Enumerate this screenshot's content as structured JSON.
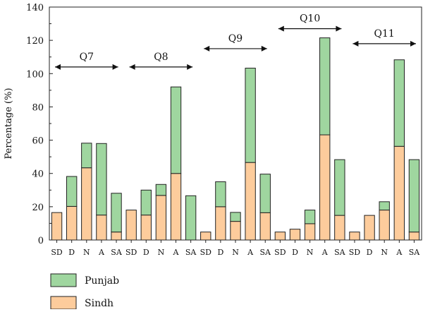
{
  "chart_data": {
    "type": "bar",
    "stacked": true,
    "ylabel": "Percentage (%)",
    "ylim": [
      0,
      140
    ],
    "yticks": [
      0,
      20,
      40,
      60,
      80,
      100,
      120,
      140
    ],
    "grid": false,
    "legend_position": "bottom-left",
    "groups": [
      "Q7",
      "Q8",
      "Q9",
      "Q10",
      "Q11"
    ],
    "categories": [
      "SD",
      "D",
      "N",
      "A",
      "SA",
      "SD",
      "D",
      "N",
      "A",
      "SA",
      "SD",
      "D",
      "N",
      "A",
      "SA",
      "SD",
      "D",
      "N",
      "A",
      "SA",
      "SD",
      "D",
      "N",
      "A",
      "SA"
    ],
    "series": [
      {
        "name": "Sindh",
        "color": "#fdcc9c",
        "values": [
          16.5,
          20.2,
          43.4,
          15.0,
          4.8,
          18.0,
          15.0,
          26.8,
          40.0,
          0.0,
          4.8,
          20.0,
          11.2,
          46.6,
          16.4,
          4.8,
          6.5,
          9.8,
          63.2,
          14.8,
          4.8,
          14.8,
          18.0,
          56.3,
          4.8
        ]
      },
      {
        "name": "Punjab",
        "color": "#9fd69f",
        "values": [
          0.0,
          18.0,
          14.8,
          43.0,
          23.3,
          0.0,
          15.0,
          6.6,
          52.0,
          26.6,
          0.0,
          15.0,
          5.4,
          56.7,
          23.2,
          0.0,
          0.0,
          8.2,
          58.3,
          33.5,
          0.0,
          0.0,
          5.0,
          52.0,
          43.5
        ]
      }
    ]
  }
}
